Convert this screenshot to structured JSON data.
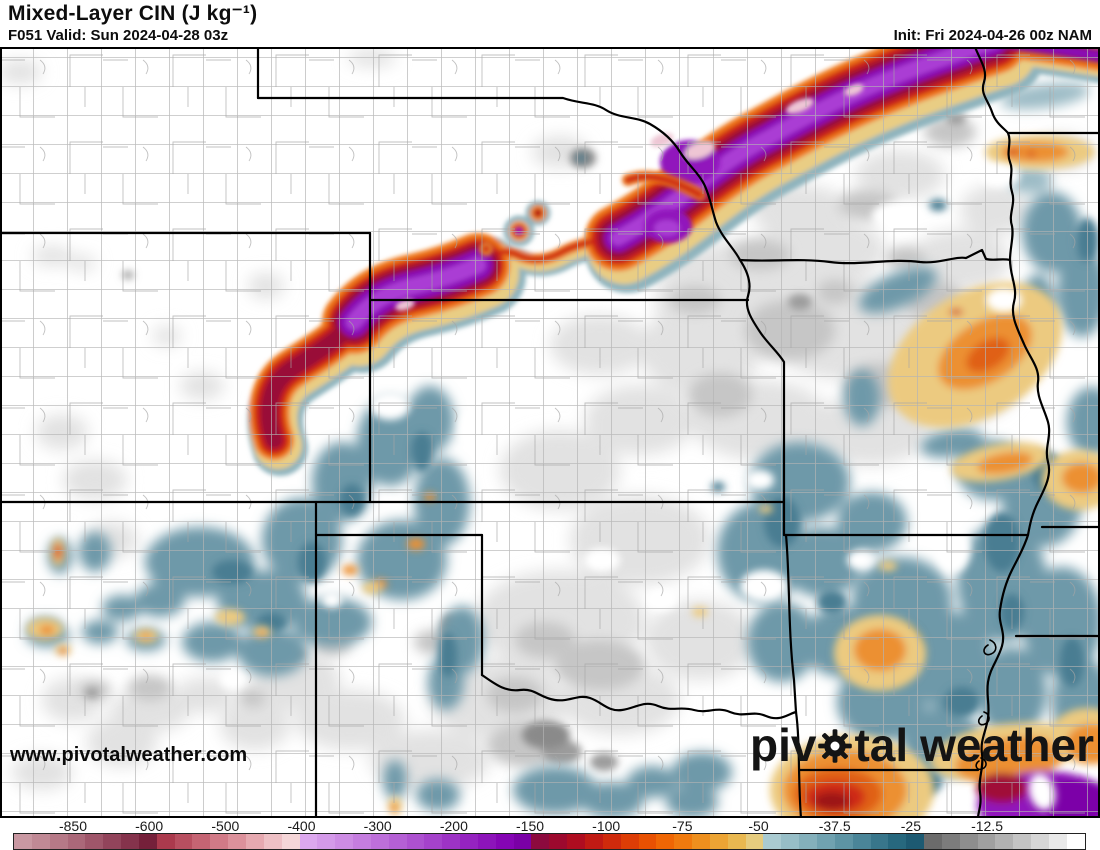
{
  "header": {
    "title": "Mixed-Layer CIN (J kg⁻¹)",
    "subtitle": "F051 Valid: Sun 2024-04-28 03z",
    "init": "Init: Fri 2024-04-26 00z NAM",
    "model": "NAM",
    "forecast_hour": "F051"
  },
  "footer": {
    "watermark": "www.pivotalweather.com",
    "logo_left": "piv",
    "logo_mid": "tal",
    "logo_right": "weather"
  },
  "colorbar": {
    "units": "J kg⁻¹",
    "labels": [
      "-850",
      "-600",
      "-500",
      "-400",
      "-300",
      "-200",
      "-150",
      "-100",
      "-75",
      "-50",
      "-37.5",
      "-25",
      "-12.5"
    ],
    "segments": [
      "#c998a2",
      "#c08995",
      "#b67987",
      "#ab6879",
      "#9f566a",
      "#92445b",
      "#85334c",
      "#75203a",
      "#ab3a4d",
      "#b84f60",
      "#c56473",
      "#d17a87",
      "#dc919b",
      "#e6a9b0",
      "#eec0c5",
      "#f5d6d8",
      "#dca8ee",
      "#d49ae9",
      "#cd8ce4",
      "#c57ddf",
      "#bd6fda",
      "#b560d5",
      "#ad51d0",
      "#a542cb",
      "#9d33c5",
      "#9523c0",
      "#8d14ba",
      "#8505b4",
      "#7a00a6",
      "#8c0a3e",
      "#9d092e",
      "#af0d20",
      "#c01a14",
      "#cf2a0c",
      "#dd3d06",
      "#e85102",
      "#ef6604",
      "#f07a0e",
      "#ee8f1e",
      "#eca434",
      "#e9b850",
      "#e6cc7e",
      "#aacbd1",
      "#97bec7",
      "#84b0bb",
      "#70a2b0",
      "#5d94a4",
      "#4a8598",
      "#38768b",
      "#27687e",
      "#1d5a72",
      "#6b6b6b",
      "#7c7c7c",
      "#8e8e8e",
      "#a0a0a0",
      "#b2b2b2",
      "#c4c4c4",
      "#d6d6d6",
      "#e9e9e9",
      "#ffffff"
    ],
    "accent_colors": {
      "strong_cin_core": "#8a0ab6",
      "moderate_cin": "#cb2312",
      "weak_cin": "#70a2b0",
      "minimal_cin": "#e2e2e2"
    }
  }
}
